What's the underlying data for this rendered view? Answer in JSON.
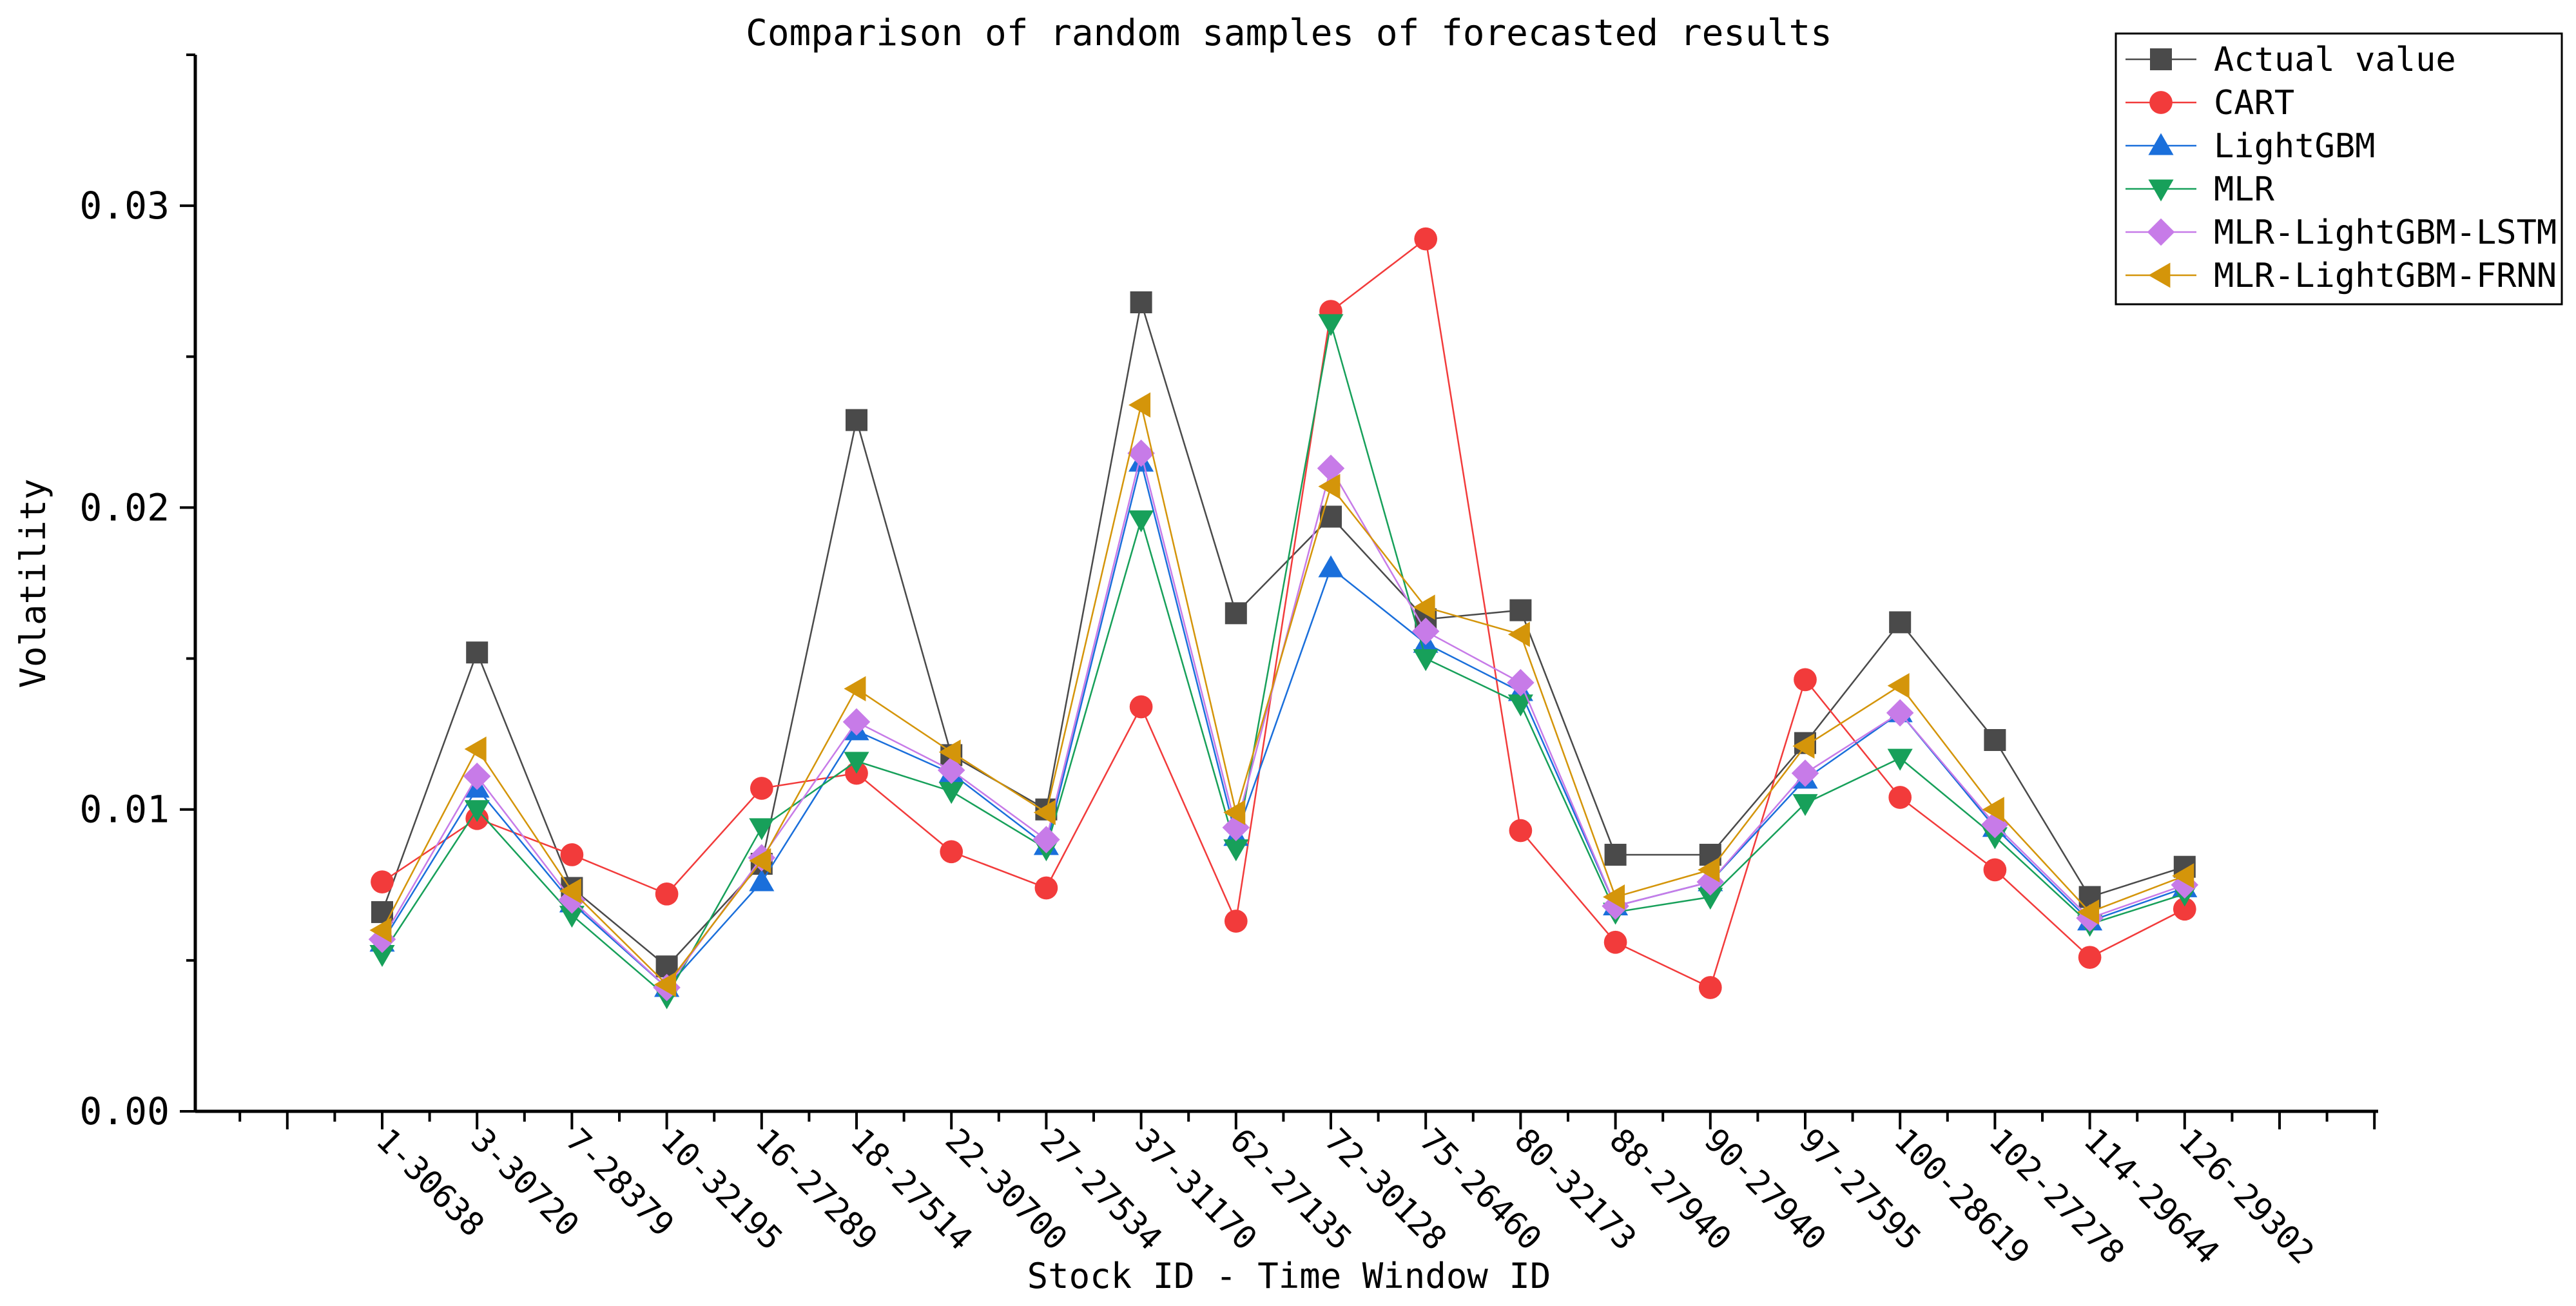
{
  "chart_data": {
    "type": "line",
    "title": "Comparison of random samples of forecasted results",
    "xlabel": "Stock ID - Time Window ID",
    "ylabel": "Volatility",
    "ylim": [
      0,
      0.035
    ],
    "yticks": [
      "0.00",
      "0.01",
      "0.02",
      "0.03"
    ],
    "ytick_values": [
      0,
      0.01,
      0.02,
      0.03
    ],
    "grid": false,
    "legend_position": "top-right",
    "categories": [
      "1-30638",
      "3-30720",
      "7-28379",
      "10-32195",
      "16-27289",
      "18-27514",
      "22-30700",
      "27-27534",
      "37-31170",
      "62-27135",
      "72-30128",
      "75-26460",
      "80-32173",
      "88-27940",
      "90-27940",
      "97-27595",
      "100-28619",
      "102-27278",
      "114-29644",
      "126-29302"
    ],
    "series": [
      {
        "name": "Actual value",
        "color": "#4a4a4a",
        "marker": "square",
        "values": [
          0.0066,
          0.0152,
          0.0074,
          0.0048,
          0.0082,
          0.0229,
          0.0118,
          0.01,
          0.0268,
          0.0165,
          0.0197,
          0.0163,
          0.0166,
          0.0085,
          0.0085,
          0.0122,
          0.0162,
          0.0123,
          0.0071,
          0.0081
        ]
      },
      {
        "name": "CART",
        "color": "#f23b3b",
        "marker": "circle",
        "values": [
          0.0076,
          0.0097,
          0.0085,
          0.0072,
          0.0107,
          0.0112,
          0.0086,
          0.0074,
          0.0134,
          0.0063,
          0.0265,
          0.0289,
          0.0093,
          0.0056,
          0.0041,
          0.0143,
          0.0104,
          0.008,
          0.0051,
          0.0067
        ]
      },
      {
        "name": "LightGBM",
        "color": "#1a6fdb",
        "marker": "triangle-up",
        "values": [
          0.0056,
          0.0107,
          0.0069,
          0.0041,
          0.0076,
          0.0126,
          0.0112,
          0.0088,
          0.0215,
          0.0091,
          0.018,
          0.0155,
          0.0139,
          0.0068,
          0.0076,
          0.011,
          0.0132,
          0.0094,
          0.0063,
          0.0074
        ]
      },
      {
        "name": "MLR",
        "color": "#17a05a",
        "marker": "triangle-down",
        "values": [
          0.0052,
          0.01,
          0.0065,
          0.0038,
          0.0094,
          0.0116,
          0.0106,
          0.0087,
          0.0196,
          0.0087,
          0.0261,
          0.015,
          0.0135,
          0.0066,
          0.0071,
          0.0102,
          0.0117,
          0.0091,
          0.0062,
          0.0072
        ]
      },
      {
        "name": "MLR-LightGBM-LSTM",
        "color": "#c77be8",
        "marker": "diamond",
        "values": [
          0.0057,
          0.0111,
          0.007,
          0.0041,
          0.0084,
          0.0129,
          0.0113,
          0.009,
          0.0218,
          0.0094,
          0.0213,
          0.0159,
          0.0142,
          0.0068,
          0.0076,
          0.0112,
          0.0132,
          0.0095,
          0.0064,
          0.0075
        ]
      },
      {
        "name": "MLR-LightGBM-FRNN",
        "color": "#d4950a",
        "marker": "triangle-left",
        "values": [
          0.006,
          0.012,
          0.0073,
          0.0042,
          0.0083,
          0.014,
          0.0119,
          0.0099,
          0.0234,
          0.0099,
          0.0207,
          0.0167,
          0.0158,
          0.0071,
          0.008,
          0.0121,
          0.0141,
          0.01,
          0.0066,
          0.0078
        ]
      }
    ]
  }
}
